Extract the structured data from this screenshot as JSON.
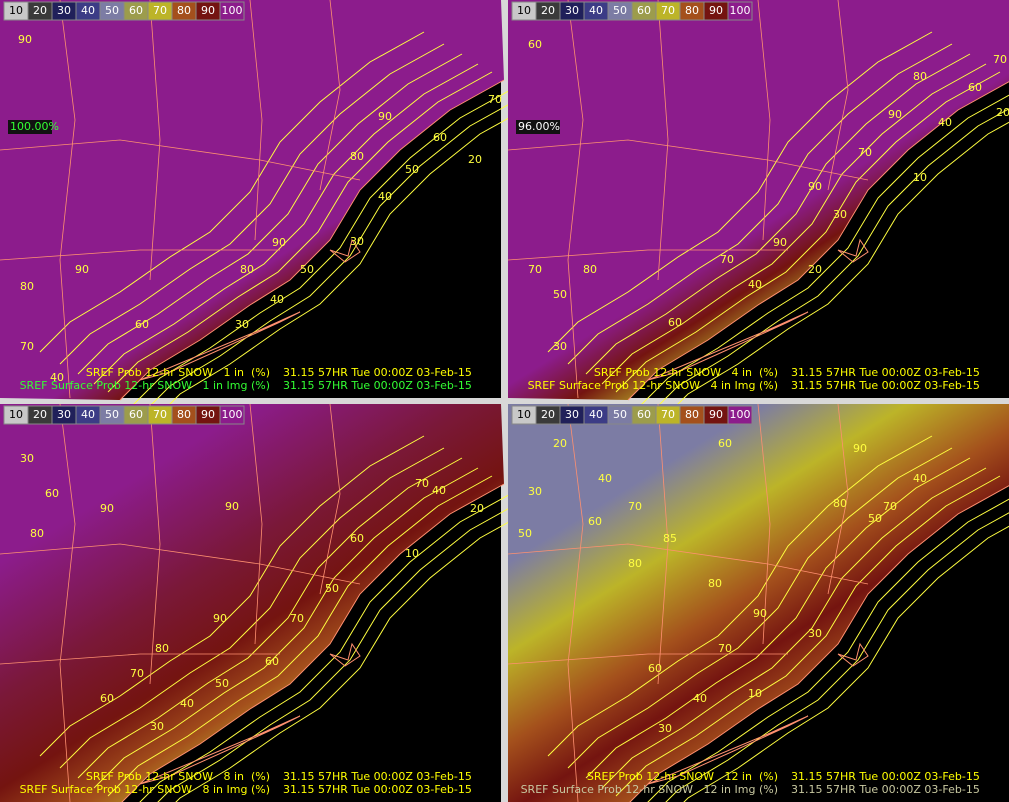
{
  "legend": [
    10,
    20,
    30,
    40,
    50,
    60,
    70,
    80,
    90,
    100
  ],
  "legend_colors": [
    "#c8c8c8",
    "#3a3a3a",
    "#20205a",
    "#3c3c86",
    "#7c7ca4",
    "#9c9c4c",
    "#bcb428",
    "#a4501c",
    "#741410",
    "#8c1c8c"
  ],
  "panels": [
    {
      "readout": "100.00%",
      "contour_labels": [
        90,
        70,
        90,
        60,
        80,
        50,
        20,
        40,
        30,
        90,
        90,
        80,
        50,
        80,
        40,
        60,
        30,
        70,
        40
      ],
      "captions": [
        {
          "text": "SREF Prob 12-hr SNOW   1 in  (%)",
          "time": "31.15 57HR Tue 00:00Z 03-Feb-15",
          "color": "#ffff00"
        },
        {
          "text": "SREF Surface Prob 12-hr SNOW   1 in Img (%)",
          "time": "31.15 57HR Tue 00:00Z 03-Feb-15",
          "color": "#33ff33"
        }
      ]
    },
    {
      "readout": "96.00%",
      "contour_labels": [
        60,
        80,
        70,
        60,
        20,
        40,
        90,
        70,
        10,
        90,
        30,
        90,
        20,
        70,
        80,
        70,
        40,
        50,
        60,
        30
      ],
      "captions": [
        {
          "text": "SREF Prob 12-hr SNOW   4 in  (%)",
          "time": "31.15 57HR Tue 00:00Z 03-Feb-15",
          "color": "#ffff00"
        },
        {
          "text": "SREF Surface Prob 12-hr SNOW   4 in Img (%)",
          "time": "31.15 57HR Tue 00:00Z 03-Feb-15",
          "color": "#ffff00"
        }
      ]
    },
    {
      "contour_labels": [
        30,
        60,
        90,
        90,
        70,
        40,
        20,
        60,
        10,
        80,
        90,
        50,
        80,
        70,
        70,
        60,
        50,
        60,
        40,
        30
      ],
      "captions": [
        {
          "text": "SREF Prob 12-hr SNOW   8 in  (%)",
          "time": "31.15 57HR Tue 00:00Z 03-Feb-15",
          "color": "#ffff00"
        },
        {
          "text": "SREF Surface Prob 12-hr SNOW   8 in Img (%)",
          "time": "31.15 57HR Tue 00:00Z 03-Feb-15",
          "color": "#ffff00"
        }
      ]
    },
    {
      "contour_labels": [
        20,
        30,
        40,
        50,
        60,
        70,
        60,
        90,
        80,
        70,
        50,
        40,
        85,
        80,
        90,
        80,
        60,
        70,
        40,
        30,
        30,
        10
      ],
      "captions": [
        {
          "text": "SREF Prob 12-hr SNOW   12 in  (%)",
          "time": "31.15 57HR Tue 00:00Z 03-Feb-15",
          "color": "#ffff00"
        },
        {
          "text": "SREF Surface Prob 12-hr SNOW   12 in Img (%)",
          "time": "31.15 57HR Tue 00:00Z 03-Feb-15",
          "color": "#c8c8a0"
        }
      ]
    }
  ]
}
